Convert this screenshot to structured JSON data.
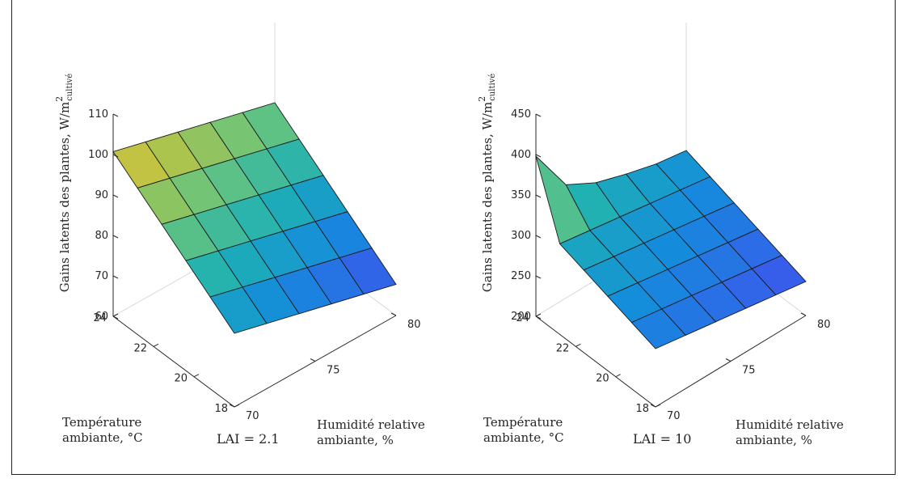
{
  "chart_data": [
    {
      "type": "surface",
      "id": "left",
      "annotation": "LAI = 2.1",
      "zlabel": "Gains latents des plantes, W/m",
      "zlabel_sup": "2",
      "zlabel_sub": "cultivé",
      "xlabel": [
        "Température",
        "ambiante, °C"
      ],
      "ylabel": [
        "Humidité relative",
        "ambiante, %"
      ],
      "x_ticks": [
        "18",
        "20",
        "22",
        "24"
      ],
      "y_ticks": [
        "70",
        "75",
        "80"
      ],
      "z_ticks": [
        "60",
        "70",
        "80",
        "90",
        "100",
        "110"
      ],
      "xlim": [
        18,
        24
      ],
      "ylim": [
        70,
        80
      ],
      "zlim": [
        60,
        110
      ],
      "x": [
        18,
        19.2,
        20.4,
        21.6,
        22.8,
        24
      ],
      "y": [
        70,
        72,
        74,
        76,
        78,
        80
      ],
      "z": [
        [
          78.2,
          76.1,
          74.0,
          71.9,
          69.8,
          67.7
        ],
        [
          82.7,
          80.6,
          78.5,
          76.4,
          74.3,
          72.2
        ],
        [
          87.2,
          85.1,
          83.0,
          80.9,
          78.8,
          76.7
        ],
        [
          91.7,
          89.6,
          87.5,
          85.4,
          83.3,
          81.2
        ],
        [
          96.2,
          94.1,
          92.0,
          89.9,
          87.8,
          85.7
        ],
        [
          100.7,
          98.6,
          96.5,
          94.4,
          92.3,
          90.2
        ]
      ]
    },
    {
      "type": "surface",
      "id": "right",
      "annotation": "LAI = 10",
      "zlabel": "Gains latents des plantes, W/m",
      "zlabel_sup": "2",
      "zlabel_sub": "cultivé",
      "xlabel": [
        "Température",
        "ambiante, °C"
      ],
      "ylabel": [
        "Humidité relative",
        "ambiante, %"
      ],
      "x_ticks": [
        "18",
        "20",
        "22",
        "24"
      ],
      "y_ticks": [
        "70",
        "75",
        "80"
      ],
      "z_ticks": [
        "200",
        "250",
        "300",
        "350",
        "400",
        "450"
      ],
      "xlim": [
        18,
        24
      ],
      "ylim": [
        70,
        80
      ],
      "zlim": [
        200,
        450
      ],
      "x": [
        18,
        19.2,
        20.4,
        21.6,
        22.8,
        24
      ],
      "y": [
        70,
        72,
        74,
        76,
        78,
        80
      ],
      "z": [
        [
          272,
          266,
          260,
          254,
          248,
          242
        ],
        [
          282,
          276,
          270,
          264,
          258,
          252
        ],
        [
          292,
          286,
          280,
          274,
          268,
          262
        ],
        [
          302,
          296,
          290,
          284,
          278,
          272
        ],
        [
          312,
          306,
          300,
          294,
          288,
          282
        ],
        [
          398,
          340,
          320,
          308,
          298,
          292
        ]
      ]
    }
  ]
}
